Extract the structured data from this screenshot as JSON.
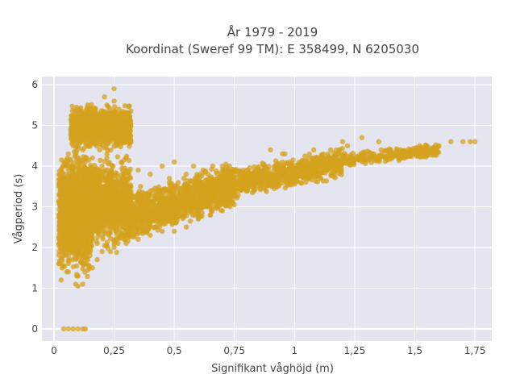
{
  "chart_data": {
    "type": "scatter",
    "title_line1": "År 1979 - 2019",
    "title_line2": "Koordinat (Sweref 99 TM): E 358499, N 6205030",
    "xlabel": "Signifikant våghöjd (m)",
    "ylabel": "Vågperiod (s)",
    "xlim": [
      -0.05,
      1.82
    ],
    "ylim": [
      -0.3,
      6.2
    ],
    "x_ticks": [
      {
        "value": 0,
        "label": "0"
      },
      {
        "value": 0.25,
        "label": "0,25"
      },
      {
        "value": 0.5,
        "label": "0,5"
      },
      {
        "value": 0.75,
        "label": "0,75"
      },
      {
        "value": 1,
        "label": "1"
      },
      {
        "value": 1.25,
        "label": "1,25"
      },
      {
        "value": 1.5,
        "label": "1,5"
      },
      {
        "value": 1.75,
        "label": "1,75"
      }
    ],
    "y_ticks": [
      {
        "value": 0,
        "label": "0"
      },
      {
        "value": 1,
        "label": "1"
      },
      {
        "value": 2,
        "label": "2"
      },
      {
        "value": 3,
        "label": "3"
      },
      {
        "value": 4,
        "label": "4"
      },
      {
        "value": 5,
        "label": "5"
      },
      {
        "value": 6,
        "label": "6"
      }
    ],
    "grid": true,
    "colors": {
      "marker": "#d4a21e",
      "plot_background": "#e5e5f0"
    },
    "points": [
      [
        0.04,
        0.0
      ],
      [
        0.06,
        0.0
      ],
      [
        0.08,
        0.0
      ],
      [
        0.1,
        0.0
      ],
      [
        0.12,
        0.0
      ],
      [
        0.13,
        0.0
      ],
      [
        0.02,
        1.6
      ],
      [
        0.03,
        1.2
      ],
      [
        0.04,
        1.8
      ],
      [
        0.05,
        2.2
      ],
      [
        0.06,
        1.4
      ],
      [
        0.07,
        2.8
      ],
      [
        0.08,
        3.4
      ],
      [
        0.09,
        1.1
      ],
      [
        0.1,
        2.4
      ],
      [
        0.11,
        3.0
      ],
      [
        0.12,
        1.6
      ],
      [
        0.13,
        2.0
      ],
      [
        0.14,
        2.6
      ],
      [
        0.15,
        1.8
      ],
      [
        0.05,
        3.8
      ],
      [
        0.06,
        4.3
      ],
      [
        0.07,
        3.2
      ],
      [
        0.08,
        4.5
      ],
      [
        0.09,
        3.9
      ],
      [
        0.1,
        4.1
      ],
      [
        0.11,
        3.5
      ],
      [
        0.12,
        4.4
      ],
      [
        0.13,
        3.7
      ],
      [
        0.14,
        3.1
      ],
      [
        0.06,
        2.5
      ],
      [
        0.08,
        1.9
      ],
      [
        0.1,
        1.3
      ],
      [
        0.12,
        2.9
      ],
      [
        0.08,
        4.9
      ],
      [
        0.12,
        5.2
      ],
      [
        0.14,
        5.0
      ],
      [
        0.15,
        5.3
      ],
      [
        0.16,
        4.8
      ],
      [
        0.17,
        5.4
      ],
      [
        0.18,
        5.1
      ],
      [
        0.19,
        4.6
      ],
      [
        0.2,
        5.2
      ],
      [
        0.21,
        4.9
      ],
      [
        0.22,
        5.5
      ],
      [
        0.23,
        5.3
      ],
      [
        0.24,
        4.7
      ],
      [
        0.25,
        5.6
      ],
      [
        0.26,
        5.2
      ],
      [
        0.27,
        5.4
      ],
      [
        0.28,
        5.0
      ],
      [
        0.29,
        4.6
      ],
      [
        0.3,
        5.3
      ],
      [
        0.31,
        5.3
      ],
      [
        0.25,
        5.9
      ],
      [
        0.21,
        5.7
      ],
      [
        0.14,
        5.5
      ],
      [
        0.16,
        4.2
      ],
      [
        0.18,
        3.8
      ],
      [
        0.19,
        4.4
      ],
      [
        0.2,
        4.0
      ],
      [
        0.22,
        4.3
      ],
      [
        0.24,
        3.9
      ],
      [
        0.26,
        4.5
      ],
      [
        0.28,
        4.1
      ],
      [
        0.3,
        4.2
      ],
      [
        0.32,
        4.6
      ],
      [
        0.27,
        4.8
      ],
      [
        0.17,
        4.6
      ],
      [
        0.15,
        2.3
      ],
      [
        0.17,
        2.8
      ],
      [
        0.18,
        2.1
      ],
      [
        0.2,
        3.2
      ],
      [
        0.22,
        2.5
      ],
      [
        0.24,
        3.4
      ],
      [
        0.26,
        2.2
      ],
      [
        0.28,
        3.0
      ],
      [
        0.3,
        2.6
      ],
      [
        0.32,
        3.3
      ],
      [
        0.34,
        2.4
      ],
      [
        0.36,
        3.5
      ],
      [
        0.38,
        2.8
      ],
      [
        0.4,
        3.1
      ],
      [
        0.42,
        2.5
      ],
      [
        0.44,
        3.4
      ],
      [
        0.46,
        2.9
      ],
      [
        0.48,
        3.6
      ],
      [
        0.5,
        2.7
      ],
      [
        0.52,
        3.2
      ],
      [
        0.54,
        3.7
      ],
      [
        0.56,
        3.0
      ],
      [
        0.58,
        3.5
      ],
      [
        0.6,
        2.9
      ],
      [
        0.62,
        3.3
      ],
      [
        0.64,
        3.8
      ],
      [
        0.66,
        3.2
      ],
      [
        0.68,
        3.6
      ],
      [
        0.7,
        3.1
      ],
      [
        0.72,
        3.9
      ],
      [
        0.35,
        3.9
      ],
      [
        0.4,
        3.8
      ],
      [
        0.45,
        4.0
      ],
      [
        0.48,
        3.7
      ],
      [
        0.5,
        4.1
      ],
      [
        0.55,
        3.8
      ],
      [
        0.58,
        4.0
      ],
      [
        0.62,
        3.9
      ],
      [
        0.66,
        4.0
      ],
      [
        0.7,
        4.0
      ],
      [
        0.73,
        4.0
      ],
      [
        0.75,
        3.5
      ],
      [
        0.78,
        3.7
      ],
      [
        0.8,
        3.4
      ],
      [
        0.82,
        3.8
      ],
      [
        0.85,
        3.6
      ],
      [
        0.88,
        3.9
      ],
      [
        0.9,
        3.7
      ],
      [
        0.92,
        4.0
      ],
      [
        0.95,
        3.8
      ],
      [
        0.98,
        4.1
      ],
      [
        1.0,
        3.9
      ],
      [
        1.02,
        4.0
      ],
      [
        1.05,
        4.1
      ],
      [
        1.08,
        4.2
      ],
      [
        1.1,
        4.0
      ],
      [
        1.12,
        4.2
      ],
      [
        1.15,
        4.1
      ],
      [
        1.18,
        4.3
      ],
      [
        1.2,
        4.2
      ],
      [
        1.23,
        4.1
      ],
      [
        1.25,
        4.2
      ],
      [
        1.28,
        4.3
      ],
      [
        1.3,
        4.2
      ],
      [
        1.33,
        4.3
      ],
      [
        1.36,
        4.4
      ],
      [
        1.4,
        4.4
      ],
      [
        1.44,
        4.4
      ],
      [
        1.48,
        4.4
      ],
      [
        1.52,
        4.5
      ],
      [
        1.55,
        4.5
      ],
      [
        1.6,
        4.5
      ],
      [
        1.65,
        4.6
      ],
      [
        1.7,
        4.6
      ],
      [
        1.73,
        4.6
      ],
      [
        1.75,
        4.6
      ],
      [
        0.25,
        2.0
      ],
      [
        0.3,
        2.1
      ],
      [
        0.35,
        2.2
      ],
      [
        0.4,
        2.3
      ],
      [
        0.45,
        2.4
      ],
      [
        0.5,
        2.4
      ],
      [
        0.55,
        2.5
      ],
      [
        0.6,
        2.7
      ],
      [
        0.65,
        2.8
      ],
      [
        0.7,
        2.9
      ],
      [
        0.2,
        1.9
      ],
      [
        0.18,
        1.7
      ],
      [
        0.16,
        1.5
      ],
      [
        0.12,
        1.1
      ],
      [
        0.1,
        1.05
      ],
      [
        0.9,
        4.4
      ],
      [
        0.95,
        4.3
      ],
      [
        1.08,
        4.4
      ],
      [
        1.15,
        4.4
      ],
      [
        1.22,
        4.5
      ],
      [
        1.28,
        4.7
      ],
      [
        1.35,
        4.6
      ],
      [
        1.2,
        4.6
      ],
      [
        0.96,
        4.3
      ]
    ],
    "clouds": [
      {
        "x_range": [
          0.02,
          0.16
        ],
        "y_range": [
          1.05,
          4.6
        ],
        "n": 1400,
        "y_skew": "center"
      },
      {
        "x_range": [
          0.07,
          0.32
        ],
        "y_range": [
          4.3,
          5.6
        ],
        "n": 900,
        "y_skew": "center"
      },
      {
        "x_range": [
          0.12,
          0.32
        ],
        "y_range": [
          1.8,
          4.4
        ],
        "n": 1100,
        "y_skew": "center"
      },
      {
        "x_range": [
          0.3,
          0.75
        ],
        "y_range": [
          2.2,
          3.9
        ],
        "n": 1200,
        "y_skew": "trend"
      },
      {
        "x_range": [
          0.7,
          1.2
        ],
        "y_range": [
          3.2,
          4.3
        ],
        "n": 700,
        "y_skew": "trend"
      },
      {
        "x_range": [
          1.2,
          1.6
        ],
        "y_range": [
          4.0,
          4.5
        ],
        "n": 250,
        "y_skew": "trend"
      }
    ]
  }
}
